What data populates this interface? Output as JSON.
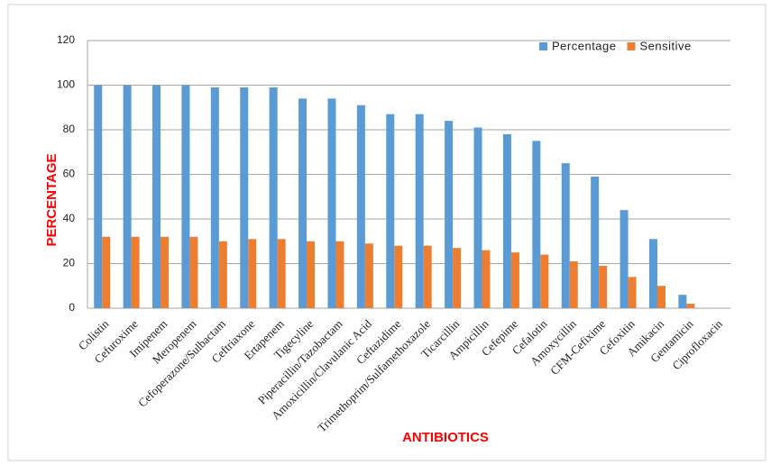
{
  "chart_data": {
    "type": "bar",
    "categories": [
      "Colistin",
      "Cefuroxime",
      "Imipenem",
      "Meropenem",
      "Cefoperazone/Sulbactam",
      "Ceftriaxone",
      "Ertapenem",
      "Tigecyline",
      "Piperacillin/Tazobactam",
      "Amoxicillin/Clavulanic Acid",
      "Ceftazidime",
      "Trimethoprim/Sulfamethoxazole",
      "Ticarcillin",
      "Ampicillin",
      "Cefepime",
      "Cefalotin",
      "Amoxycillin",
      "CFM-Cefixime",
      "Cefoxitin",
      "Amikacin",
      "Gentamicin",
      "Ciprofloxacin"
    ],
    "series": [
      {
        "name": "Percentage",
        "color": "#5b9bd5",
        "values": [
          100,
          100,
          100,
          100,
          99,
          99,
          99,
          94,
          94,
          91,
          87,
          87,
          84,
          81,
          78,
          75,
          65,
          59,
          44,
          31,
          6,
          0
        ]
      },
      {
        "name": "Sensitive",
        "color": "#ed7d31",
        "values": [
          32,
          32,
          32,
          32,
          30,
          31,
          31,
          30,
          30,
          29,
          28,
          28,
          27,
          26,
          25,
          24,
          21,
          19,
          14,
          10,
          2,
          0
        ]
      }
    ],
    "xlabel": "ANTIBIOTICS",
    "ylabel": "PERCENTAGE",
    "ylim": [
      0,
      120
    ],
    "yticks": [
      0,
      20,
      40,
      60,
      80,
      100,
      120
    ],
    "grid": true,
    "legend": "top-right"
  }
}
